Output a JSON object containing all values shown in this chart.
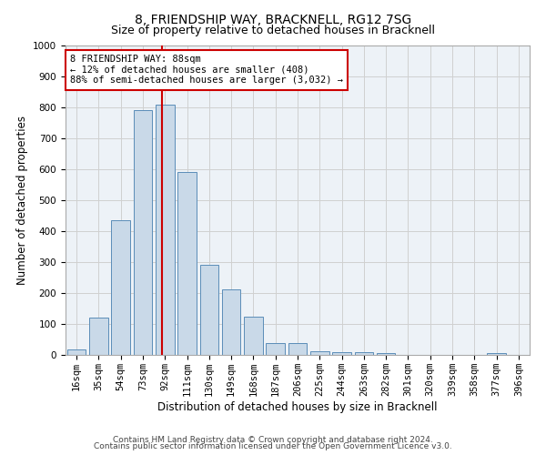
{
  "title1": "8, FRIENDSHIP WAY, BRACKNELL, RG12 7SG",
  "title2": "Size of property relative to detached houses in Bracknell",
  "xlabel": "Distribution of detached houses by size in Bracknell",
  "ylabel": "Number of detached properties",
  "footer1": "Contains HM Land Registry data © Crown copyright and database right 2024.",
  "footer2": "Contains public sector information licensed under the Open Government Licence v3.0.",
  "categories": [
    "16sqm",
    "35sqm",
    "54sqm",
    "73sqm",
    "92sqm",
    "111sqm",
    "130sqm",
    "149sqm",
    "168sqm",
    "187sqm",
    "206sqm",
    "225sqm",
    "244sqm",
    "263sqm",
    "282sqm",
    "301sqm",
    "320sqm",
    "339sqm",
    "358sqm",
    "377sqm",
    "396sqm"
  ],
  "values": [
    18,
    120,
    435,
    790,
    808,
    590,
    290,
    212,
    125,
    38,
    38,
    12,
    10,
    8,
    5,
    0,
    0,
    0,
    0,
    5,
    0
  ],
  "bar_color": "#c9d9e8",
  "bar_edge_color": "#5b8db8",
  "vline_position": 3.85,
  "vline_color": "#cc0000",
  "annotation_text": "8 FRIENDSHIP WAY: 88sqm\n← 12% of detached houses are smaller (408)\n88% of semi-detached houses are larger (3,032) →",
  "annotation_box_color": "white",
  "annotation_box_edge": "#cc0000",
  "ylim": [
    0,
    1000
  ],
  "yticks": [
    0,
    100,
    200,
    300,
    400,
    500,
    600,
    700,
    800,
    900,
    1000
  ],
  "grid_color": "#d0d0d0",
  "bg_color": "#edf2f7",
  "title1_fontsize": 10,
  "title2_fontsize": 9,
  "xlabel_fontsize": 8.5,
  "ylabel_fontsize": 8.5,
  "tick_fontsize": 7.5,
  "footer_fontsize": 6.5
}
